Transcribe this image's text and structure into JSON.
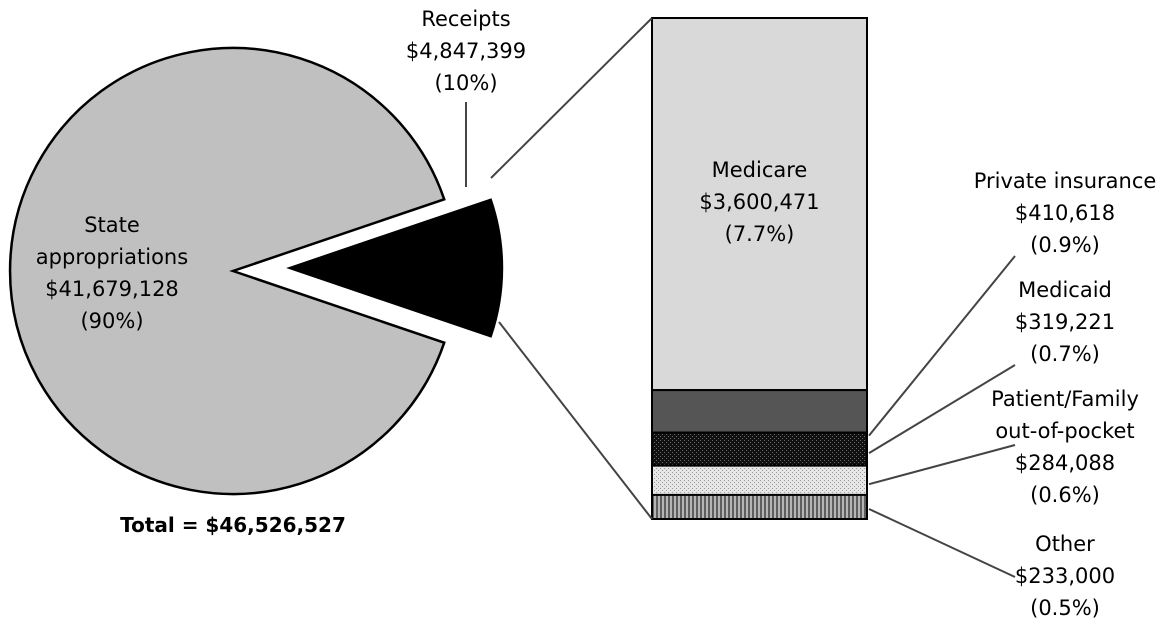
{
  "chart_data": [
    {
      "type": "pie",
      "categories": [
        "State appropriations",
        "Receipts"
      ],
      "values": [
        41679128,
        4847399
      ],
      "percent_labels": [
        "(90%)",
        "(10%)"
      ],
      "value_labels": [
        "$41,679,128",
        "$4,847,399"
      ],
      "label_lines": [
        [
          "State",
          "appropriations"
        ],
        [
          "Receipts"
        ]
      ],
      "colors": [
        "#c0c0c0",
        "#000000"
      ],
      "exploded_slice": "Receipts",
      "total_label": "Total = $46,526,527"
    },
    {
      "type": "bar",
      "stacked": true,
      "parent_slice": "Receipts",
      "categories": [
        "Medicare",
        "Private insurance",
        "Medicaid",
        "Patient/Family out-of-pocket",
        "Other"
      ],
      "values": [
        3600471,
        410618,
        319221,
        284088,
        233000
      ],
      "value_labels": [
        "$3,600,471",
        "$410,618",
        "$319,221",
        "$284,088",
        "$233,000"
      ],
      "percent_labels": [
        "(7.7%)",
        "(0.9%)",
        "(0.7%)",
        "(0.6%)",
        "(0.5%)"
      ],
      "label_lines": [
        [
          "Medicare"
        ],
        [
          "Private insurance"
        ],
        [
          "Medicaid"
        ],
        [
          "Patient/Family",
          "out-of-pocket"
        ],
        [
          "Other"
        ]
      ],
      "colors": [
        "#d9d9d9",
        "#555555",
        "#111111",
        "#e0e0e0",
        "#8a8a8a"
      ],
      "patterns": [
        "solid",
        "solid",
        "dots-dark",
        "dots-light",
        "vertical-stripes"
      ]
    }
  ]
}
